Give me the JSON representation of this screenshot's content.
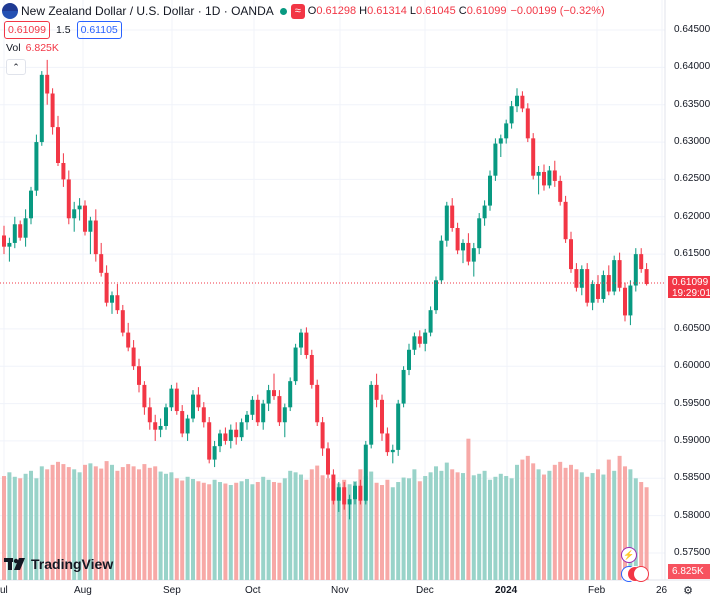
{
  "header": {
    "title": "New Zealand Dollar / U.S. Dollar · 1D · OANDA",
    "ohlc": [
      {
        "k": "O",
        "v": "0.61298"
      },
      {
        "k": "H",
        "v": "0.61314"
      },
      {
        "k": "L",
        "v": "0.61045"
      },
      {
        "k": "C",
        "v": "0.61099"
      }
    ],
    "change": "−0.00199 (−0.32%)",
    "sell_price": "0.61099",
    "spread": "1.5",
    "buy_price": "0.61105",
    "vol_label": "Vol",
    "vol_value": "6.825K"
  },
  "price_axis": [
    "0.64500",
    "0.64000",
    "0.63500",
    "0.63000",
    "0.62500",
    "0.62000",
    "0.61500",
    "0.60500",
    "0.60000",
    "0.59500",
    "0.59000",
    "0.58500",
    "0.58000",
    "0.57500"
  ],
  "current_price": "0.61099",
  "countdown": "19:29:01",
  "volume_tag": "6.825K",
  "time_axis": [
    "Jul",
    "Aug",
    "Sep",
    "Oct",
    "Nov",
    "Dec",
    "2024",
    "Feb",
    "26"
  ],
  "logo_text": "TradingView",
  "colors": {
    "up": "#089981",
    "down": "#f23645",
    "vol_up": "#99d3c9",
    "vol_down": "#f7a9a7"
  },
  "chart_data": {
    "type": "candlestick",
    "x_start": "Jul",
    "ylim": [
      0.5725,
      0.6475
    ],
    "candles": [
      [
        0.6175,
        0.6188,
        0.615,
        0.616
      ],
      [
        0.616,
        0.6172,
        0.614,
        0.6165
      ],
      [
        0.6165,
        0.62,
        0.6158,
        0.619
      ],
      [
        0.619,
        0.6195,
        0.6168,
        0.6172
      ],
      [
        0.6172,
        0.621,
        0.616,
        0.6198
      ],
      [
        0.6198,
        0.624,
        0.619,
        0.6235
      ],
      [
        0.6235,
        0.631,
        0.6228,
        0.63
      ],
      [
        0.63,
        0.6395,
        0.6295,
        0.639
      ],
      [
        0.639,
        0.641,
        0.635,
        0.6365
      ],
      [
        0.6365,
        0.6372,
        0.631,
        0.632
      ],
      [
        0.632,
        0.6335,
        0.6268,
        0.6272
      ],
      [
        0.6272,
        0.6285,
        0.624,
        0.625
      ],
      [
        0.625,
        0.6262,
        0.619,
        0.6198
      ],
      [
        0.6198,
        0.622,
        0.618,
        0.621
      ],
      [
        0.621,
        0.6225,
        0.6195,
        0.6215
      ],
      [
        0.6215,
        0.6222,
        0.6175,
        0.618
      ],
      [
        0.618,
        0.62,
        0.615,
        0.6195
      ],
      [
        0.6195,
        0.621,
        0.614,
        0.615
      ],
      [
        0.615,
        0.6165,
        0.612,
        0.6125
      ],
      [
        0.6125,
        0.6135,
        0.608,
        0.6085
      ],
      [
        0.6085,
        0.61,
        0.607,
        0.6095
      ],
      [
        0.6095,
        0.611,
        0.607,
        0.6075
      ],
      [
        0.6075,
        0.6082,
        0.604,
        0.6045
      ],
      [
        0.6045,
        0.6058,
        0.602,
        0.6025
      ],
      [
        0.6025,
        0.6035,
        0.5995,
        0.6
      ],
      [
        0.6,
        0.601,
        0.5965,
        0.5975
      ],
      [
        0.5975,
        0.598,
        0.5935,
        0.5945
      ],
      [
        0.5945,
        0.5958,
        0.5915,
        0.5925
      ],
      [
        0.5925,
        0.5935,
        0.59,
        0.5915
      ],
      [
        0.5915,
        0.593,
        0.5905,
        0.592
      ],
      [
        0.592,
        0.595,
        0.5915,
        0.5945
      ],
      [
        0.5945,
        0.5975,
        0.594,
        0.597
      ],
      [
        0.597,
        0.5978,
        0.5935,
        0.594
      ],
      [
        0.594,
        0.5948,
        0.5905,
        0.591
      ],
      [
        0.591,
        0.5935,
        0.59,
        0.593
      ],
      [
        0.593,
        0.5968,
        0.5925,
        0.5962
      ],
      [
        0.5962,
        0.5972,
        0.594,
        0.5945
      ],
      [
        0.5945,
        0.5952,
        0.5918,
        0.5925
      ],
      [
        0.5925,
        0.5932,
        0.587,
        0.5875
      ],
      [
        0.5875,
        0.59,
        0.5865,
        0.5893
      ],
      [
        0.5893,
        0.5915,
        0.5885,
        0.591
      ],
      [
        0.591,
        0.5918,
        0.5895,
        0.59
      ],
      [
        0.59,
        0.5922,
        0.589,
        0.5915
      ],
      [
        0.5915,
        0.5925,
        0.5895,
        0.5905
      ],
      [
        0.5905,
        0.593,
        0.59,
        0.5925
      ],
      [
        0.5925,
        0.594,
        0.5915,
        0.5935
      ],
      [
        0.5935,
        0.596,
        0.5928,
        0.5955
      ],
      [
        0.5955,
        0.5962,
        0.592,
        0.5925
      ],
      [
        0.5925,
        0.5955,
        0.5915,
        0.595
      ],
      [
        0.595,
        0.5975,
        0.594,
        0.5968
      ],
      [
        0.5968,
        0.599,
        0.5955,
        0.596
      ],
      [
        0.596,
        0.5968,
        0.592,
        0.5925
      ],
      [
        0.5925,
        0.595,
        0.5905,
        0.5945
      ],
      [
        0.5945,
        0.5985,
        0.594,
        0.598
      ],
      [
        0.598,
        0.603,
        0.5975,
        0.6025
      ],
      [
        0.6025,
        0.605,
        0.6015,
        0.6045
      ],
      [
        0.6045,
        0.6052,
        0.601,
        0.6015
      ],
      [
        0.6015,
        0.6022,
        0.597,
        0.5975
      ],
      [
        0.5975,
        0.5982,
        0.592,
        0.5925
      ],
      [
        0.5925,
        0.5932,
        0.588,
        0.589
      ],
      [
        0.589,
        0.5898,
        0.585,
        0.5855
      ],
      [
        0.5855,
        0.5862,
        0.5815,
        0.582
      ],
      [
        0.582,
        0.5845,
        0.5805,
        0.5838
      ],
      [
        0.5838,
        0.5845,
        0.5808,
        0.5815
      ],
      [
        0.5815,
        0.5828,
        0.5795,
        0.5822
      ],
      [
        0.5822,
        0.5845,
        0.5815,
        0.584
      ],
      [
        0.584,
        0.5848,
        0.5815,
        0.582
      ],
      [
        0.582,
        0.59,
        0.5815,
        0.5895
      ],
      [
        0.5895,
        0.598,
        0.589,
        0.5975
      ],
      [
        0.5975,
        0.599,
        0.5945,
        0.5955
      ],
      [
        0.5955,
        0.5962,
        0.59,
        0.591
      ],
      [
        0.591,
        0.5918,
        0.588,
        0.5885
      ],
      [
        0.5885,
        0.5895,
        0.587,
        0.5888
      ],
      [
        0.5888,
        0.5955,
        0.588,
        0.595
      ],
      [
        0.595,
        0.6,
        0.5945,
        0.5995
      ],
      [
        0.5995,
        0.603,
        0.5988,
        0.6022
      ],
      [
        0.6022,
        0.6045,
        0.6015,
        0.604
      ],
      [
        0.604,
        0.6048,
        0.6025,
        0.603
      ],
      [
        0.603,
        0.605,
        0.602,
        0.6045
      ],
      [
        0.6045,
        0.608,
        0.604,
        0.6075
      ],
      [
        0.6075,
        0.612,
        0.607,
        0.6115
      ],
      [
        0.6115,
        0.6175,
        0.611,
        0.6168
      ],
      [
        0.6168,
        0.622,
        0.616,
        0.6215
      ],
      [
        0.6215,
        0.6225,
        0.618,
        0.6185
      ],
      [
        0.6185,
        0.6192,
        0.615,
        0.6155
      ],
      [
        0.6155,
        0.617,
        0.6138,
        0.6165
      ],
      [
        0.6165,
        0.6178,
        0.6135,
        0.614
      ],
      [
        0.614,
        0.6165,
        0.612,
        0.6158
      ],
      [
        0.6158,
        0.6205,
        0.615,
        0.6198
      ],
      [
        0.6198,
        0.6222,
        0.6188,
        0.6215
      ],
      [
        0.6215,
        0.6262,
        0.6208,
        0.6255
      ],
      [
        0.6255,
        0.6305,
        0.6248,
        0.6298
      ],
      [
        0.6298,
        0.631,
        0.628,
        0.6305
      ],
      [
        0.6305,
        0.633,
        0.6298,
        0.6325
      ],
      [
        0.6325,
        0.6355,
        0.6318,
        0.6348
      ],
      [
        0.6348,
        0.6372,
        0.634,
        0.6362
      ],
      [
        0.6362,
        0.6368,
        0.634,
        0.6345
      ],
      [
        0.6345,
        0.6352,
        0.63,
        0.6305
      ],
      [
        0.6305,
        0.6312,
        0.625,
        0.6255
      ],
      [
        0.6255,
        0.6268,
        0.623,
        0.626
      ],
      [
        0.626,
        0.627,
        0.6235,
        0.6242
      ],
      [
        0.6242,
        0.6268,
        0.6238,
        0.6262
      ],
      [
        0.6262,
        0.6275,
        0.624,
        0.6248
      ],
      [
        0.6248,
        0.6255,
        0.6215,
        0.622
      ],
      [
        0.622,
        0.6228,
        0.6165,
        0.617
      ],
      [
        0.617,
        0.618,
        0.6125,
        0.613
      ],
      [
        0.613,
        0.6138,
        0.61,
        0.6105
      ],
      [
        0.6105,
        0.6135,
        0.6095,
        0.613
      ],
      [
        0.613,
        0.6138,
        0.608,
        0.6085
      ],
      [
        0.6085,
        0.6115,
        0.6075,
        0.611
      ],
      [
        0.611,
        0.6122,
        0.6085,
        0.609
      ],
      [
        0.609,
        0.6128,
        0.6085,
        0.6122
      ],
      [
        0.6122,
        0.6135,
        0.6095,
        0.61
      ],
      [
        0.61,
        0.6148,
        0.6095,
        0.6142
      ],
      [
        0.6142,
        0.6152,
        0.61,
        0.6105
      ],
      [
        0.6105,
        0.6112,
        0.606,
        0.6068
      ],
      [
        0.6068,
        0.6115,
        0.6055,
        0.6108
      ],
      [
        0.6108,
        0.6158,
        0.61,
        0.615
      ],
      [
        0.615,
        0.6158,
        0.6125,
        0.613
      ],
      [
        0.613,
        0.6138,
        0.6108,
        0.611
      ]
    ],
    "volumes": [
      0.5853,
      0.5858,
      0.5852,
      0.585,
      0.5856,
      0.586,
      0.585,
      0.5866,
      0.5862,
      0.5868,
      0.5872,
      0.5869,
      0.5865,
      0.5862,
      0.5858,
      0.5868,
      0.587,
      0.5866,
      0.5863,
      0.5873,
      0.5868,
      0.586,
      0.5865,
      0.5869,
      0.5866,
      0.5862,
      0.5869,
      0.5864,
      0.5866,
      0.5859,
      0.5856,
      0.5858,
      0.585,
      0.5847,
      0.5852,
      0.5849,
      0.5846,
      0.5844,
      0.5842,
      0.5848,
      0.5845,
      0.5843,
      0.5841,
      0.5844,
      0.5846,
      0.5849,
      0.5842,
      0.5845,
      0.5852,
      0.5848,
      0.5845,
      0.5844,
      0.585,
      0.586,
      0.5858,
      0.5855,
      0.5848,
      0.5862,
      0.5867,
      0.5854,
      0.585,
      0.5846,
      0.5843,
      0.5848,
      0.5842,
      0.5846,
      0.5862,
      0.5853,
      0.5859,
      0.5844,
      0.5841,
      0.5848,
      0.5838,
      0.5845,
      0.5851,
      0.585,
      0.5862,
      0.5846,
      0.5853,
      0.5858,
      0.5866,
      0.586,
      0.5871,
      0.5862,
      0.5858,
      0.5857,
      0.5903,
      0.5854,
      0.5856,
      0.586,
      0.5848,
      0.5852,
      0.5856,
      0.5853,
      0.585,
      0.5868,
      0.5875,
      0.588,
      0.587,
      0.5862,
      0.5855,
      0.586,
      0.5868,
      0.5872,
      0.5864,
      0.5868,
      0.5862,
      0.5858,
      0.5852,
      0.5857,
      0.5862,
      0.5855,
      0.5875,
      0.586,
      0.588,
      0.5866,
      0.5862,
      0.585,
      0.5845,
      0.5838
    ]
  }
}
